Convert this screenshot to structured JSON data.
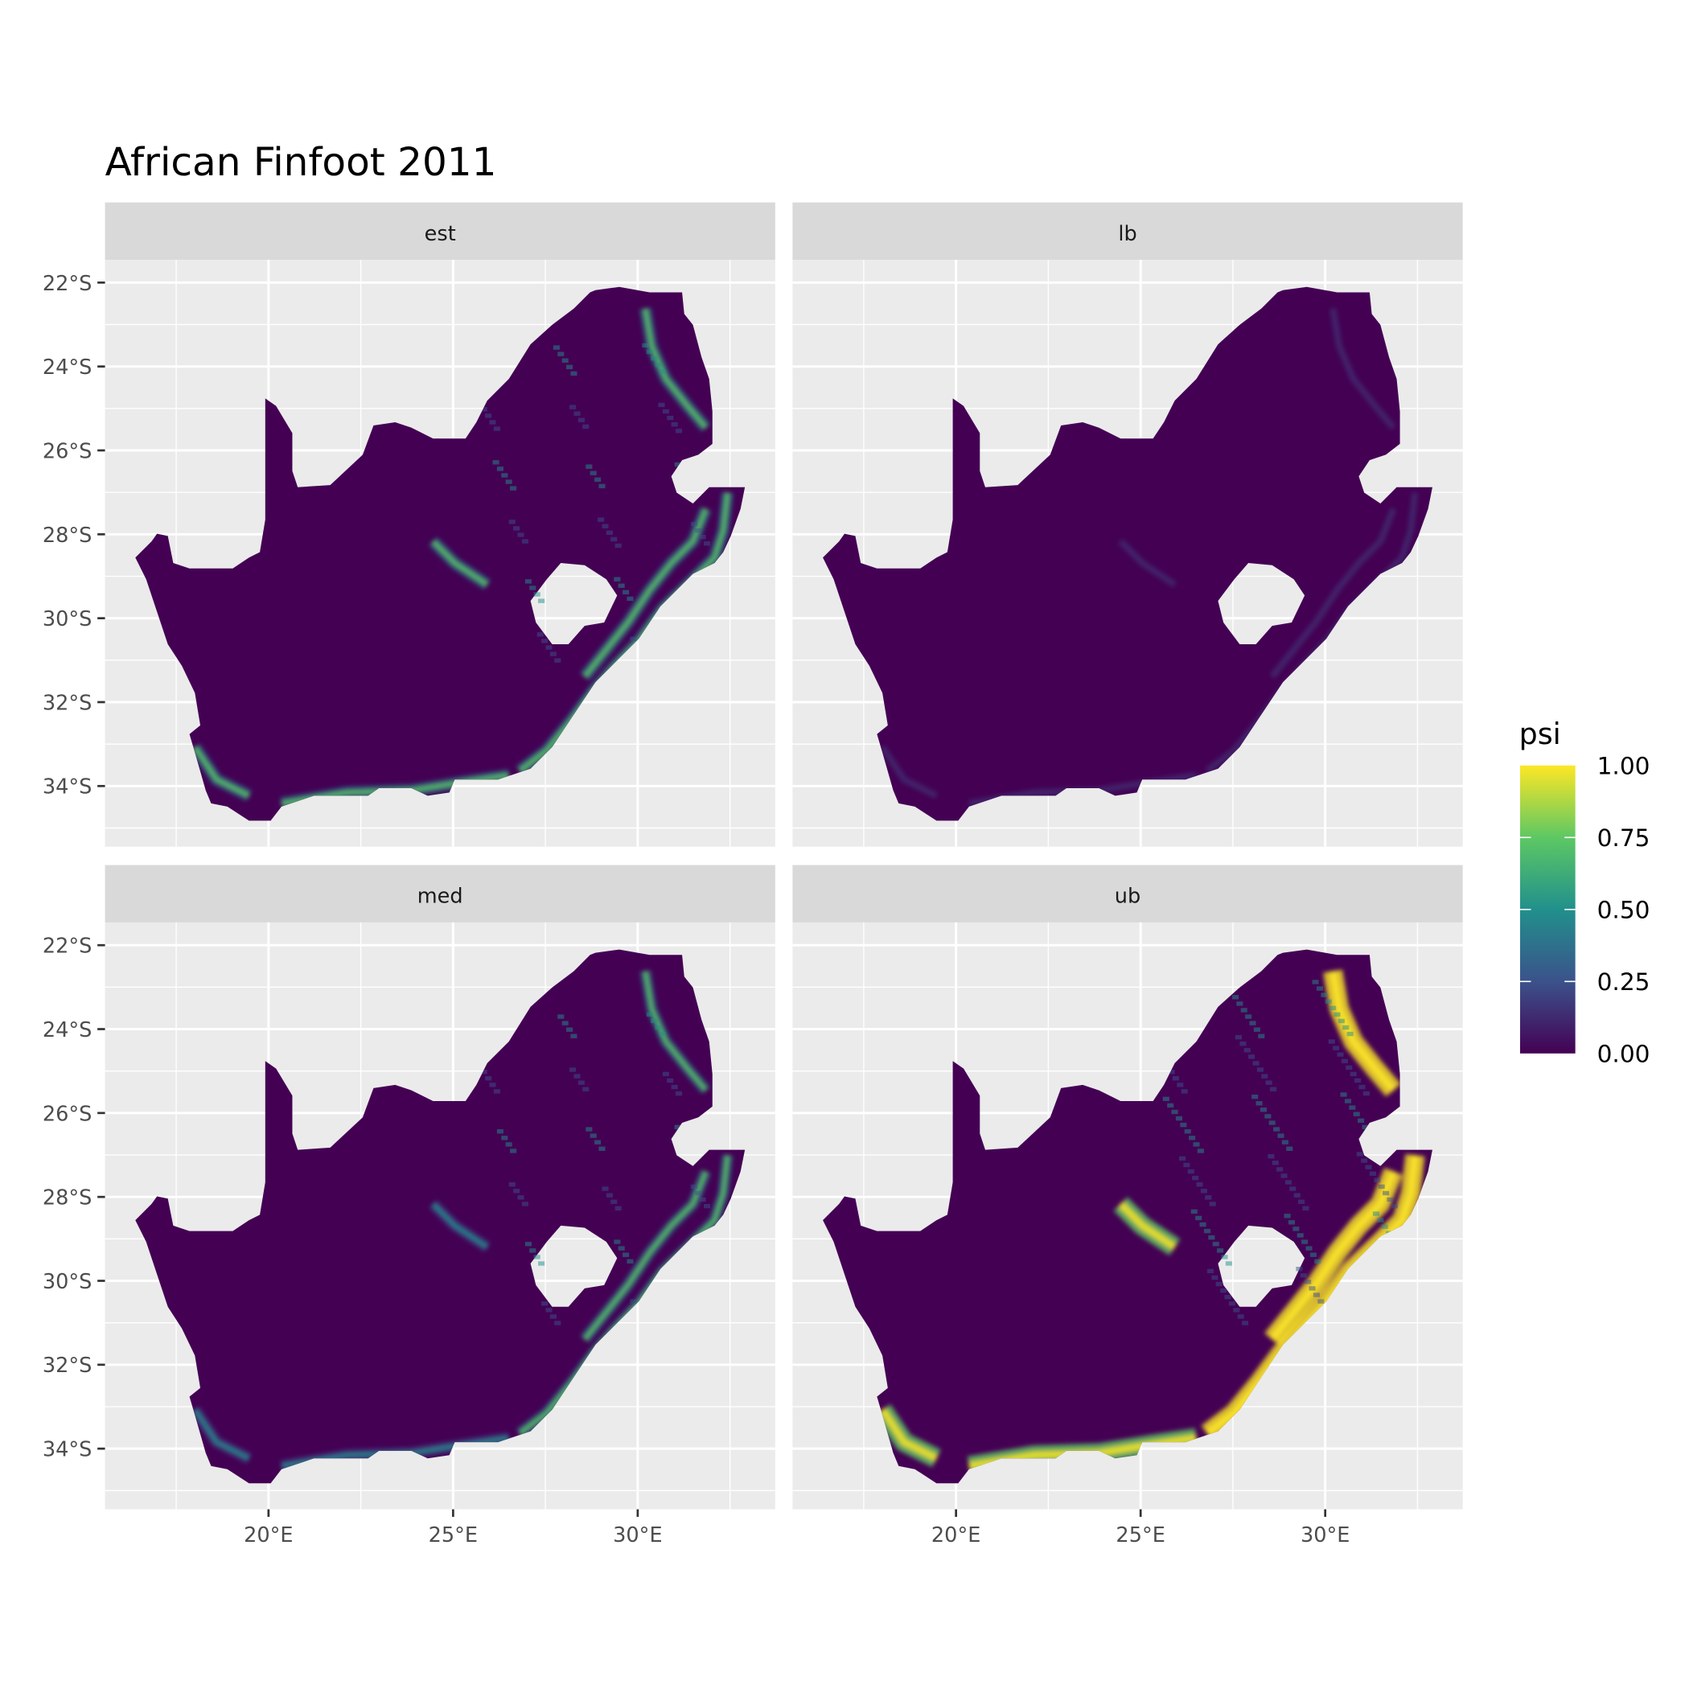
{
  "chart_data": {
    "type": "heatmap",
    "title": "African Finfoot 2011",
    "facets": [
      "est",
      "lb",
      "med",
      "ub"
    ],
    "facet_layout": "2x2",
    "x_ticks": [
      "20°E",
      "25°E",
      "30°E"
    ],
    "x_tick_values": [
      20,
      25,
      30
    ],
    "y_ticks": [
      "22°S",
      "24°S",
      "26°S",
      "28°S",
      "30°S",
      "32°S",
      "34°S"
    ],
    "y_tick_values": [
      -22,
      -24,
      -26,
      -28,
      -30,
      -32,
      -34
    ],
    "xlabel": "",
    "ylabel": "",
    "grid": true,
    "legend": {
      "title": "psi",
      "placement": "right",
      "labels": [
        "1.00",
        "0.75",
        "0.50",
        "0.25",
        "0.00"
      ],
      "range": [
        0,
        1
      ],
      "colormap": [
        "#440154",
        "#3B528B",
        "#21908C",
        "#5DC863",
        "#FDE725"
      ]
    },
    "relative_intensity": {
      "est": 0.5,
      "lb": 0.12,
      "med": 0.45,
      "ub": 1.0
    }
  }
}
